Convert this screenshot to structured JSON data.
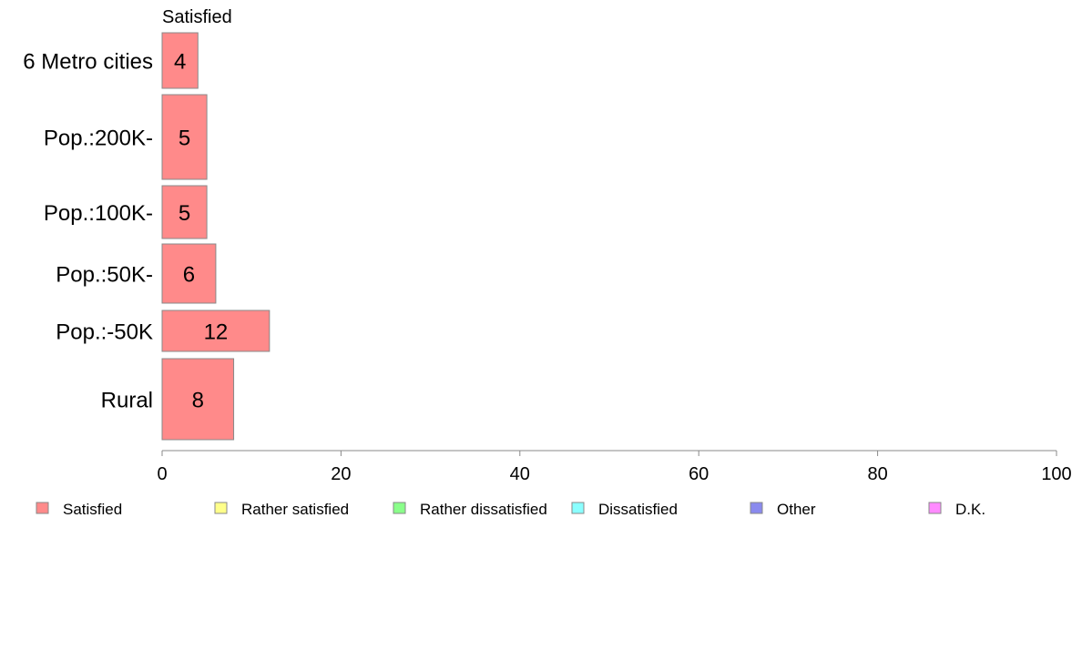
{
  "chart_data": {
    "type": "bar",
    "orientation": "horizontal",
    "stacked": true,
    "categories": [
      "6 Metro cities",
      "Pop.:200K-",
      "Pop.:100K-",
      "Pop.:50K-",
      "Pop.:-50K",
      "Rural"
    ],
    "series": [
      {
        "name": "Satisfied",
        "color": "#ff8a8a",
        "values": [
          4,
          5,
          5,
          6,
          12,
          8
        ]
      },
      {
        "name": "Rather satisfied",
        "color": "#ffff8a",
        "values": [
          0,
          0,
          0,
          0,
          0,
          0
        ]
      },
      {
        "name": "Rather dissatisfied",
        "color": "#8aff8a",
        "values": [
          0,
          0,
          0,
          0,
          0,
          0
        ]
      },
      {
        "name": "Dissatisfied",
        "color": "#8affff",
        "values": [
          0,
          0,
          0,
          0,
          0,
          0
        ]
      },
      {
        "name": "Other",
        "color": "#8a8aee",
        "values": [
          0,
          0,
          0,
          0,
          0,
          0
        ]
      },
      {
        "name": "D.K.",
        "color": "#ff8aff",
        "values": [
          0,
          0,
          0,
          0,
          0,
          0
        ]
      }
    ],
    "bar_labels": [
      "4",
      "5",
      "5",
      "6",
      "12",
      "8"
    ],
    "series_header": "Satisfied",
    "xlim": [
      0,
      100
    ],
    "x_ticks": [
      0,
      20,
      40,
      60,
      80,
      100
    ],
    "x_tick_labels": [
      "0",
      "20",
      "40",
      "60",
      "80",
      "100"
    ],
    "grid": false,
    "legend_position": "bottom"
  }
}
